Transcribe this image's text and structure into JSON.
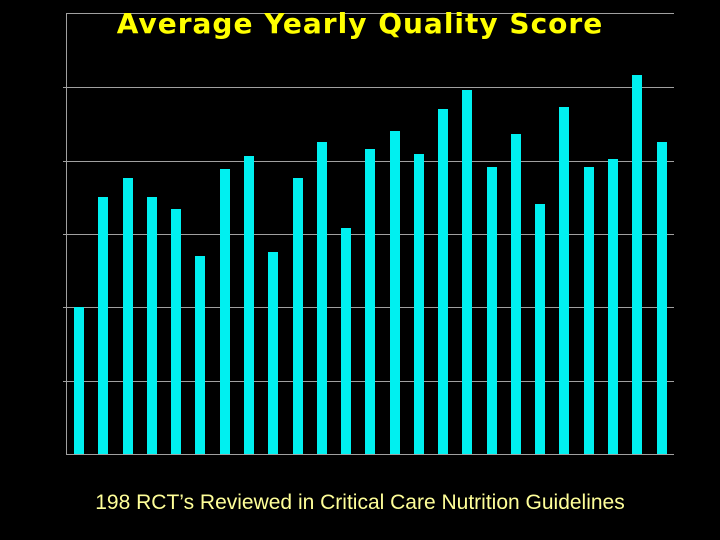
{
  "slide": {
    "background_color": "#000000",
    "title": "Average Yearly Quality Score",
    "title_color": "#FFFF00",
    "caption": "198 RCT’s Reviewed in Critical Care Nutrition Guidelines",
    "caption_color": "#FFFF99"
  },
  "chart_data": {
    "type": "bar",
    "title": "Average Yearly Quality Score",
    "xlabel": "",
    "ylabel": "",
    "categories": [],
    "x_tick_labels_visible": false,
    "y_tick_labels_visible": false,
    "legend": null,
    "grid": "horizontal",
    "y_divisions": 6,
    "ylim": [
      0,
      6
    ],
    "n_bars": 25,
    "values": [
      2.0,
      3.5,
      3.76,
      3.5,
      3.34,
      2.7,
      3.89,
      4.06,
      2.75,
      3.76,
      4.25,
      3.08,
      4.16,
      4.4,
      4.09,
      4.7,
      4.96,
      3.91,
      4.36,
      3.41,
      4.73,
      3.92,
      4.02,
      5.17,
      4.25
    ],
    "bar_color": "#00F0F0",
    "gridline_color": "#A0A0A0",
    "axis_line_color": "#A0A0A0",
    "plot_background": "#000000"
  }
}
